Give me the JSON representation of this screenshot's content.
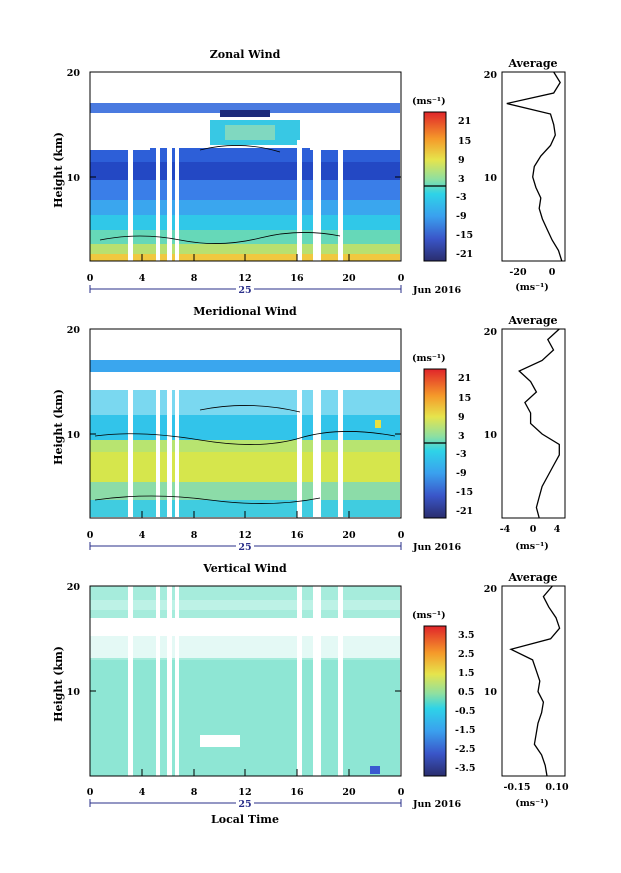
{
  "figure": {
    "date_label": "Jun 2016",
    "day_label": "25",
    "xlabel": "Local Time"
  },
  "panels": [
    {
      "title": "Zonal Wind",
      "ylabel": "Height (km)",
      "yticks": [
        "20",
        "10"
      ],
      "xticks": [
        "0",
        "4",
        "8",
        "12",
        "16",
        "20",
        "0"
      ],
      "colorbar_unit": "(ms⁻¹)",
      "colorbar_ticks": [
        "21",
        "15",
        "9",
        "3",
        "-3",
        "-9",
        "-15",
        "-21"
      ],
      "avg_title": "Average",
      "avg_xticks": [
        "-20",
        "0"
      ],
      "avg_unit": "(ms⁻¹)"
    },
    {
      "title": "Meridional Wind",
      "ylabel": "Height (km)",
      "yticks": [
        "20",
        "10"
      ],
      "xticks": [
        "0",
        "4",
        "8",
        "12",
        "16",
        "20",
        "0"
      ],
      "colorbar_unit": "(ms⁻¹)",
      "colorbar_ticks": [
        "21",
        "15",
        "9",
        "3",
        "-3",
        "-9",
        "-15",
        "-21"
      ],
      "avg_title": "Average",
      "avg_xticks": [
        "-4",
        "0",
        "4"
      ],
      "avg_unit": "(ms⁻¹)"
    },
    {
      "title": "Vertical Wind",
      "ylabel": "Height (km)",
      "yticks": [
        "20",
        "10"
      ],
      "xticks": [
        "0",
        "4",
        "8",
        "12",
        "16",
        "20",
        "0"
      ],
      "colorbar_unit": "(ms⁻¹)",
      "colorbar_ticks": [
        "3.5",
        "2.5",
        "1.5",
        "0.5",
        "-0.5",
        "-1.5",
        "-2.5",
        "-3.5"
      ],
      "avg_title": "Average",
      "avg_xticks": [
        "-0.15",
        "0.10"
      ],
      "avg_unit": "(ms⁻¹)"
    }
  ],
  "chart_data": [
    {
      "type": "heatmap",
      "title": "Zonal Wind",
      "ylabel": "Height (km)",
      "xlim": [
        0,
        24
      ],
      "ylim": [
        2,
        20
      ],
      "colorbar_range": [
        -24,
        24
      ],
      "profile": {
        "title": "Average",
        "xlim": [
          -33,
          6
        ],
        "heights": [
          2,
          3,
          4,
          5,
          6,
          7,
          8,
          9,
          10,
          11,
          12,
          13,
          14,
          15,
          16,
          17,
          18,
          19,
          20
        ],
        "values": [
          4,
          2,
          -2,
          -5,
          -8,
          -10,
          -9,
          -12,
          -14,
          -13,
          -9,
          -3,
          0,
          -1,
          -3,
          -30,
          -1,
          3,
          -1
        ]
      }
    },
    {
      "type": "heatmap",
      "title": "Meridional Wind",
      "ylabel": "Height (km)",
      "xlim": [
        0,
        24
      ],
      "ylim": [
        2,
        20
      ],
      "colorbar_range": [
        -24,
        24
      ],
      "profile": {
        "title": "Average",
        "xlim": [
          -6,
          5
        ],
        "heights": [
          2,
          3,
          4,
          5,
          6,
          7,
          8,
          9,
          10,
          11,
          12,
          13,
          14,
          15,
          16,
          17,
          18,
          19,
          20
        ],
        "values": [
          0.5,
          0,
          0.5,
          1,
          2,
          3,
          4,
          4,
          1,
          -1,
          -1,
          -2,
          0,
          -1,
          -3,
          1,
          3,
          2,
          4
        ]
      }
    },
    {
      "type": "heatmap",
      "title": "Vertical Wind",
      "ylabel": "Height (km)",
      "xlim": [
        0,
        24
      ],
      "ylim": [
        2,
        20
      ],
      "colorbar_range": [
        -4,
        4
      ],
      "profile": {
        "title": "Average",
        "xlim": [
          -0.2,
          0.15
        ],
        "heights": [
          2,
          3,
          4,
          5,
          6,
          7,
          8,
          9,
          10,
          11,
          12,
          13,
          14,
          15,
          16,
          17,
          18,
          19,
          20
        ],
        "values": [
          0.05,
          0.04,
          0.02,
          -0.02,
          -0.01,
          0.0,
          0.02,
          0.03,
          0.0,
          0.01,
          -0.01,
          -0.03,
          -0.15,
          0.07,
          0.12,
          0.1,
          0.06,
          0.03,
          0.08
        ]
      }
    }
  ]
}
